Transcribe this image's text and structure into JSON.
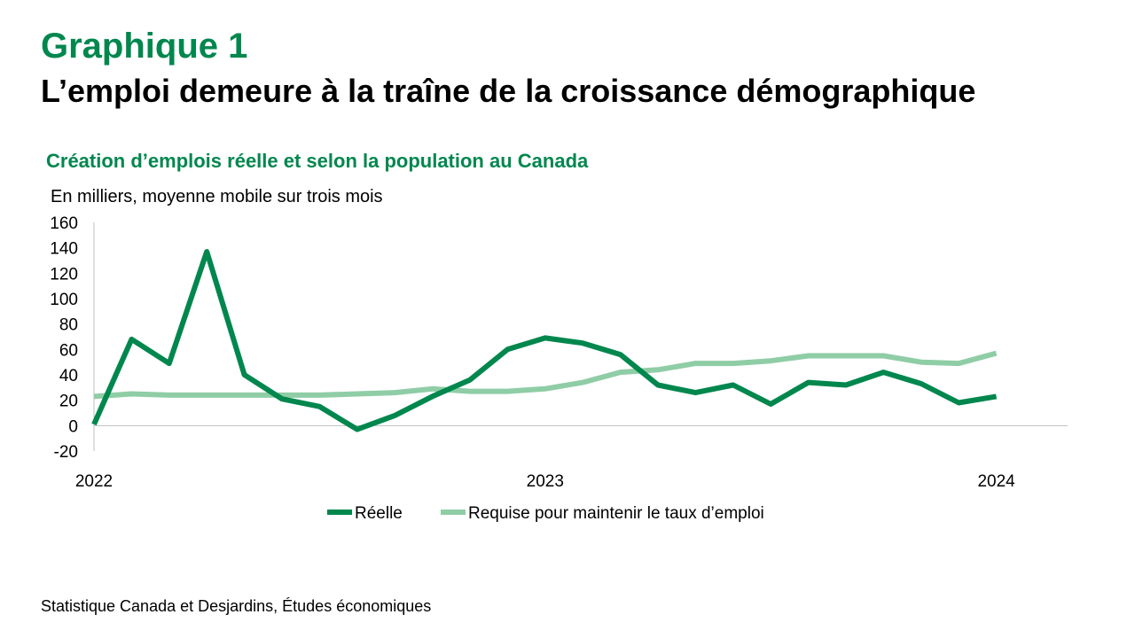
{
  "header": {
    "graph_label": "Graphique 1",
    "title": "L’emploi demeure à la traîne de la croissance démographique"
  },
  "chart_data": {
    "type": "line",
    "title": "Création d’emplois réelle et selon la population au Canada",
    "ylabel": "En milliers, moyenne mobile sur trois mois",
    "xlabel": "",
    "ylim": [
      -20,
      160
    ],
    "yticks": [
      -20,
      0,
      20,
      40,
      60,
      80,
      100,
      120,
      140,
      160
    ],
    "x_tick_labels": [
      {
        "label": "2022",
        "index": 0
      },
      {
        "label": "2023",
        "index": 12
      },
      {
        "label": "2024",
        "index": 24
      }
    ],
    "x": [
      "2022-01",
      "2022-02",
      "2022-03",
      "2022-04",
      "2022-05",
      "2022-06",
      "2022-07",
      "2022-08",
      "2022-09",
      "2022-10",
      "2022-11",
      "2022-12",
      "2023-01",
      "2023-02",
      "2023-03",
      "2023-04",
      "2023-05",
      "2023-06",
      "2023-07",
      "2023-08",
      "2023-09",
      "2023-10",
      "2023-11",
      "2023-12",
      "2024-01"
    ],
    "series": [
      {
        "name": "Réelle",
        "color": "#00874E",
        "values": [
          1,
          68,
          49,
          137,
          40,
          21,
          15,
          -3,
          8,
          23,
          36,
          60,
          69,
          65,
          56,
          32,
          26,
          32,
          17,
          34,
          32,
          42,
          33,
          18,
          23
        ]
      },
      {
        "name": "Requise pour maintenir le taux d’emploi",
        "color": "#8FCDA6",
        "values": [
          23,
          25,
          24,
          24,
          24,
          24,
          24,
          25,
          26,
          29,
          27,
          27,
          29,
          34,
          42,
          44,
          49,
          49,
          51,
          55,
          55,
          55,
          50,
          49,
          57
        ]
      }
    ],
    "legend_position": "bottom",
    "grid": false
  },
  "source": "Statistique Canada et Desjardins, Études économiques"
}
